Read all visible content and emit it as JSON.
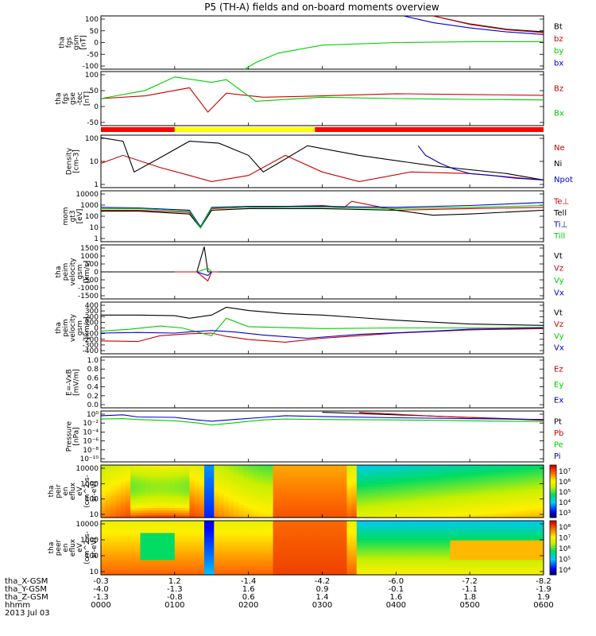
{
  "title": "P5 (TH-A) fields and on-board moments overview",
  "chart_data": {
    "type": "line",
    "panels": [
      {
        "id": "fgs-gsm",
        "kind": "line",
        "ylabel": [
          "tha",
          "fgs",
          "gsm",
          "[nT]"
        ],
        "yticks": [
          "100",
          "50",
          "0",
          "-50",
          "-100"
        ],
        "ylim": [
          -100,
          100
        ],
        "series": [
          {
            "name": "Bt",
            "color": "#000000",
            "x": [
              4.5,
              5.0,
              5.5,
              6.0
            ],
            "y": [
              100,
              70,
              50,
              40
            ]
          },
          {
            "name": "bz",
            "color": "#cc0000",
            "x": [
              4.5,
              5.0,
              5.5,
              6.0
            ],
            "y": [
              100,
              68,
              48,
              37
            ]
          },
          {
            "name": "by",
            "color": "#00cc00",
            "x": [
              1.95,
              2.1,
              2.4,
              3.0,
              4.0,
              5.0,
              6.0
            ],
            "y": [
              -100,
              -75,
              -40,
              -10,
              0,
              3,
              3
            ]
          },
          {
            "name": "bx",
            "color": "#0000cc",
            "x": [
              4.1,
              4.5,
              5.0,
              5.5,
              6.0
            ],
            "y": [
              100,
              75,
              55,
              40,
              30
            ]
          }
        ]
      },
      {
        "id": "fgs-gse",
        "kind": "line",
        "ylabel": [
          "tha",
          "fgs",
          "gse",
          "-tec",
          "[nT]"
        ],
        "yticks": [
          "100",
          "50",
          "0",
          "-50"
        ],
        "ylim": [
          -100,
          100
        ],
        "series": [
          {
            "name": "Bz",
            "color": "#cc0000",
            "x": [
              0.0,
              0.6,
              1.2,
              1.45,
              1.7,
              2.2,
              3.0,
              4.0,
              5.0,
              6.0
            ],
            "y": [
              0,
              10,
              40,
              -50,
              20,
              5,
              10,
              18,
              15,
              12
            ]
          },
          {
            "name": "Bx",
            "color": "#00cc00",
            "x": [
              0.0,
              0.6,
              1.0,
              1.5,
              1.7,
              2.1,
              3.0,
              4.0,
              5.0,
              6.0
            ],
            "y": [
              0,
              30,
              80,
              60,
              70,
              -10,
              5,
              0,
              -3,
              -5
            ]
          }
        ]
      },
      {
        "id": "density",
        "kind": "line",
        "ylabel": [
          "Density",
          "[cm-3]"
        ],
        "yticks": [
          "100",
          "10",
          "1"
        ],
        "ylim": [
          0.5,
          200
        ],
        "log": true,
        "series": [
          {
            "name": "Ne",
            "color": "#cc0000",
            "x": [
              0.0,
              0.3,
              0.8,
              1.2,
              1.5,
              2.0,
              2.5,
              3.0,
              3.5,
              4.2,
              5.0,
              6.0
            ],
            "y": [
              8,
              20,
              5,
              2,
              1,
              2,
              20,
              3,
              1,
              3,
              2.5,
              1.2
            ]
          },
          {
            "name": "Ni",
            "color": "#000000",
            "x": [
              0.0,
              0.3,
              0.45,
              0.8,
              1.2,
              1.6,
              2.0,
              2.2,
              2.4,
              2.8,
              3.5,
              4.5,
              5.5,
              6.0
            ],
            "y": [
              150,
              100,
              3,
              15,
              100,
              80,
              20,
              3,
              8,
              60,
              20,
              6,
              2.5,
              1.2
            ]
          },
          {
            "name": "Npot",
            "color": "#0000cc",
            "x": [
              4.3,
              4.4,
              4.6,
              4.8,
              5.0,
              5.3,
              5.6,
              6.0
            ],
            "y": [
              60,
              20,
              8,
              4,
              2.5,
              2,
              1.5,
              1.2
            ]
          }
        ]
      },
      {
        "id": "temperature",
        "kind": "line",
        "ylabel": [
          "mom",
          "gt3",
          "[eV]"
        ],
        "yticks": [
          "10000",
          "1000",
          "100",
          "10",
          "1"
        ],
        "ylim": [
          1,
          10000
        ],
        "log": true,
        "series": [
          {
            "name": "Te⊥",
            "color": "#cc0000",
            "x": [
              0.0,
              0.5,
              1.2,
              1.35,
              1.5,
              2.0,
              3.0,
              3.3,
              3.4,
              4.0,
              5.0,
              6.0
            ],
            "y": [
              300,
              300,
              200,
              15,
              400,
              500,
              700,
              500,
              1500,
              300,
              400,
              500
            ]
          },
          {
            "name": "Tell",
            "color": "#000000",
            "x": [
              0.0,
              0.5,
              1.2,
              1.35,
              1.5,
              2.0,
              3.0,
              4.0,
              4.5,
              5.0,
              6.0
            ],
            "y": [
              250,
              250,
              150,
              12,
              300,
              400,
              400,
              300,
              120,
              150,
              300
            ]
          },
          {
            "name": "Ti⊥",
            "color": "#0000cc",
            "x": [
              0.0,
              0.5,
              1.2,
              1.35,
              1.5,
              2.0,
              3.0,
              4.0,
              5.0,
              6.0
            ],
            "y": [
              500,
              450,
              300,
              15,
              500,
              600,
              600,
              500,
              700,
              1200
            ]
          },
          {
            "name": "Till",
            "color": "#00cc00",
            "x": [
              0.0,
              0.5,
              1.2,
              1.35,
              1.5,
              2.0,
              3.0,
              4.0,
              5.0,
              6.0
            ],
            "y": [
              400,
              400,
              250,
              12,
              450,
              500,
              500,
              400,
              500,
              700
            ]
          }
        ]
      },
      {
        "id": "velocity-esa",
        "kind": "line",
        "ylabel": [
          "tha",
          "peim",
          "velocity",
          "gsm",
          "[km/s]"
        ],
        "yticks": [
          "1500",
          "1000",
          "500",
          "0",
          "-500",
          "-1000",
          "-1500"
        ],
        "ylim": [
          -1500,
          1500
        ],
        "series": [
          {
            "name": "Vt",
            "color": "#000000",
            "x": [
              0.0,
              1.3,
              1.4,
              1.45,
              1.5,
              6.0
            ],
            "y": [
              0,
              0,
              1400,
              0,
              0,
              0
            ]
          },
          {
            "name": "Vz",
            "color": "#cc0000",
            "x": [
              1.0,
              1.3,
              1.45,
              1.5,
              1.6
            ],
            "y": [
              0,
              0,
              -500,
              0,
              0
            ]
          },
          {
            "name": "Vy",
            "color": "#00cc00",
            "x": [
              1.3,
              1.45,
              1.5
            ],
            "y": [
              0,
              200,
              0
            ]
          },
          {
            "name": "Vx",
            "color": "#0000cc",
            "x": [
              1.3,
              1.45,
              1.5
            ],
            "y": [
              0,
              -200,
              0
            ]
          }
        ]
      },
      {
        "id": "velocity-gsm",
        "kind": "line",
        "ylabel": [
          "tha",
          "peim",
          "velocity",
          "gsm",
          "[km/s]"
        ],
        "yticks": [
          "400",
          "300",
          "200",
          "100",
          "0",
          "-100",
          "-200",
          "-300",
          "-400"
        ],
        "ylim": [
          -400,
          400
        ],
        "series": [
          {
            "name": "Vt",
            "color": "#000000",
            "x": [
              0.0,
              0.5,
              1.0,
              1.2,
              1.5,
              1.7,
              2.0,
              2.5,
              3.0,
              3.5,
              4.0,
              5.0,
              6.0
            ],
            "y": [
              200,
              200,
              190,
              150,
              200,
              320,
              270,
              220,
              200,
              160,
              120,
              60,
              40
            ]
          },
          {
            "name": "Vz",
            "color": "#cc0000",
            "x": [
              0.0,
              0.5,
              0.8,
              1.2,
              1.5,
              1.7,
              2.0,
              2.5,
              3.0,
              3.5,
              4.0,
              5.0,
              6.0
            ],
            "y": [
              -200,
              -210,
              -120,
              -90,
              -80,
              -130,
              -180,
              -220,
              -160,
              -120,
              -80,
              -30,
              -10
            ]
          },
          {
            "name": "Vy",
            "color": "#00cc00",
            "x": [
              0.0,
              0.4,
              0.8,
              1.1,
              1.5,
              1.7,
              2.0,
              3.0,
              4.0,
              5.0,
              6.0
            ],
            "y": [
              -50,
              -20,
              30,
              0,
              -120,
              150,
              20,
              -10,
              0,
              0,
              10
            ]
          },
          {
            "name": "Vx",
            "color": "#0000cc",
            "x": [
              0.0,
              0.5,
              1.0,
              1.2,
              1.5,
              1.8,
              2.2,
              2.8,
              3.5,
              4.5,
              5.0,
              6.0
            ],
            "y": [
              -80,
              -70,
              -80,
              -60,
              -40,
              -60,
              -110,
              -160,
              -100,
              -50,
              -20,
              0
            ]
          }
        ]
      },
      {
        "id": "efield",
        "kind": "empty",
        "ylabel": [
          "E=-VxB",
          "[mV/m]"
        ],
        "yticks": [
          "1.0",
          "0.8",
          "0.6",
          "0.4",
          "0.2",
          "0.0"
        ],
        "ylim": [
          0,
          1
        ],
        "series": [
          {
            "name": "Ez",
            "color": "#cc0000"
          },
          {
            "name": "Ey",
            "color": "#00cc00"
          },
          {
            "name": "Ex",
            "color": "#0000cc"
          }
        ]
      },
      {
        "id": "pressure",
        "kind": "line",
        "ylabel": [
          "Pressure",
          "[nPa]"
        ],
        "yticks": [
          "10⁰",
          "10⁻²",
          "10⁻⁴",
          "10⁻⁶",
          "10⁻⁸",
          "10⁻¹⁰"
        ],
        "ylim": [
          -10.5,
          1.5
        ],
        "log10": true,
        "series": [
          {
            "name": "Pt",
            "color": "#000000",
            "x": [
              3.0,
              4.0,
              5.0,
              6.0
            ],
            "y": [
              1.2,
              0.6,
              0.0,
              -0.6
            ]
          },
          {
            "name": "Pb",
            "color": "#cc0000",
            "x": [
              3.5,
              4.5,
              6.0
            ],
            "y": [
              1.2,
              0.3,
              -0.7
            ]
          },
          {
            "name": "Pe",
            "color": "#00cc00",
            "x": [
              0.0,
              0.3,
              0.5,
              1.0,
              1.3,
              1.5,
              1.8,
              2.2,
              2.5,
              3.0,
              4.0,
              5.0,
              6.0
            ],
            "y": [
              -0.4,
              -0.3,
              -0.5,
              -0.8,
              -1.3,
              -1.8,
              -1.3,
              -0.6,
              -0.4,
              -0.5,
              -0.6,
              -0.8,
              -1.0
            ]
          },
          {
            "name": "Pi",
            "color": "#0000cc",
            "x": [
              0.0,
              0.3,
              0.5,
              1.0,
              1.3,
              1.5,
              1.8,
              2.2,
              2.5,
              3.0,
              4.0,
              5.0,
              6.0
            ],
            "y": [
              0.4,
              0.6,
              0.1,
              0.0,
              -0.6,
              -0.9,
              -0.5,
              0.0,
              0.4,
              0.2,
              -0.1,
              -0.3,
              -0.5
            ]
          }
        ]
      },
      {
        "id": "ion-spectrogram",
        "kind": "spectrogram",
        "ylabel": [
          "tha",
          "peir",
          "en",
          "eflux",
          "eV",
          "(cm^2-s-",
          "sr-eV)"
        ],
        "yticks": [
          "10000",
          "1000",
          "100",
          "10"
        ],
        "ylim": [
          5,
          30000
        ],
        "colorbar_ticks": [
          "10⁷",
          "10⁶",
          "10⁵",
          "10⁴",
          "10³"
        ]
      },
      {
        "id": "electron-spectrogram",
        "kind": "spectrogram",
        "ylabel": [
          "tha",
          "peer",
          "en",
          "eflux",
          "eV",
          "(cm^2-s-",
          "sr-eV)"
        ],
        "yticks": [
          "10000",
          "1000",
          "100",
          "10"
        ],
        "ylim": [
          5,
          30000
        ],
        "colorbar_ticks": [
          "10⁸",
          "10⁷",
          "10⁶",
          "10⁵",
          "10⁴"
        ]
      }
    ],
    "xaxis": {
      "rows": [
        {
          "label": "tha_X-GSM",
          "values": [
            "-0.3",
            "1.2",
            "-1.4",
            "-4.2",
            "-6.0",
            "-7.2",
            "-8.2"
          ]
        },
        {
          "label": "tha_Y-GSM",
          "values": [
            "-4.0",
            "-1.3",
            "1.6",
            "0.9",
            "-0.1",
            "-1.1",
            "-1.9"
          ]
        },
        {
          "label": "tha_Z-GSM",
          "values": [
            "-1.3",
            "-0.8",
            "0.6",
            "1.4",
            "1.6",
            "1.8",
            "1.9"
          ]
        },
        {
          "label": "hhmm",
          "values": [
            "0000",
            "0100",
            "0200",
            "0300",
            "0400",
            "0500",
            "0600"
          ]
        }
      ],
      "date": "2013 Jul 03",
      "xlim": [
        0,
        6
      ]
    },
    "mode_bar": [
      {
        "from": 0.0,
        "to": 1.0,
        "color": "#ff0000"
      },
      {
        "from": 1.0,
        "to": 2.9,
        "color": "#ffff00"
      },
      {
        "from": 2.9,
        "to": 6.0,
        "color": "#ff0000"
      }
    ]
  }
}
